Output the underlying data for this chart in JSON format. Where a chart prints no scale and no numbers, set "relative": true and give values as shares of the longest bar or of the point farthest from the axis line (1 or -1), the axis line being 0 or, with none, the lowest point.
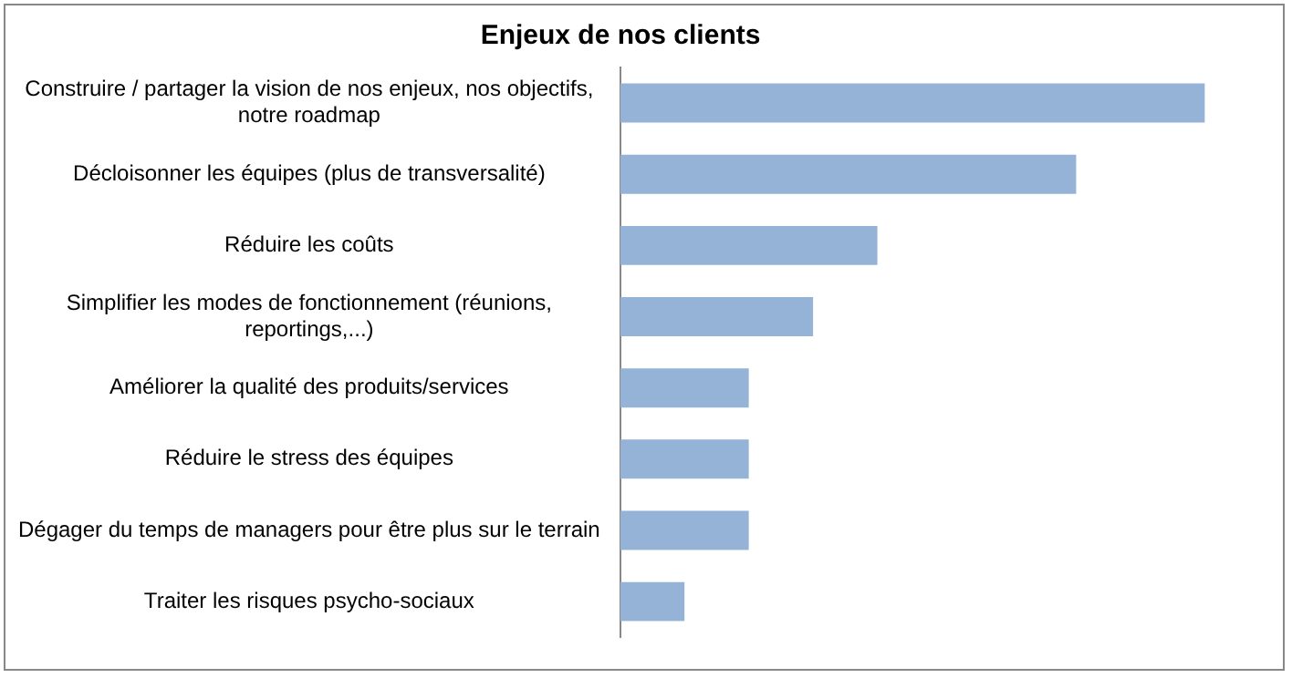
{
  "chart_data": {
    "type": "bar",
    "orientation": "horizontal",
    "relative": true,
    "title": "Enjeux de nos clients",
    "categories": [
      "Construire / partager la vision de nos enjeux, nos objectifs, notre roadmap",
      "Décloisonner les équipes (plus de transversalité)",
      "Réduire les coûts",
      "Simplifier les modes de fonctionnement (réunions, reportings,...)",
      "Améliorer la qualité des produits/services",
      "Réduire le stress des équipes",
      "Dégager du temps de managers pour être plus sur le terrain",
      "Traiter les risques psycho-sociaux"
    ],
    "values": [
      1,
      0.78,
      0.44,
      0.33,
      0.22,
      0.22,
      0.22,
      0.11
    ],
    "color": "#95b3d7",
    "legend": false
  }
}
